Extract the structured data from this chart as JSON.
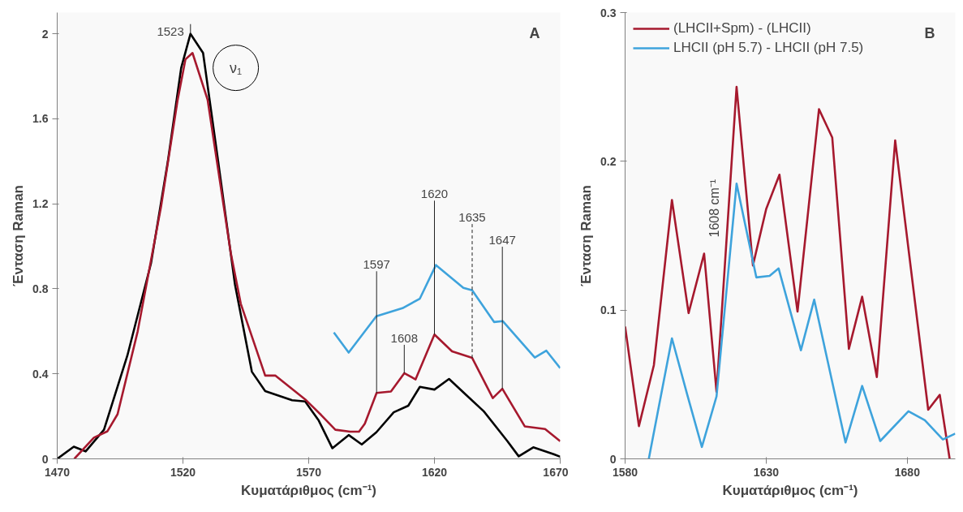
{
  "chart_data": [
    {
      "type": "line",
      "title": "A",
      "xlabel": "Κυματάριθμος (cm⁻¹)",
      "ylabel": "Ένταση Raman",
      "xlim": [
        1470,
        1670
      ],
      "xticks": [
        1470,
        1520,
        1570,
        1620,
        1670
      ],
      "ylim": [
        0,
        2.1
      ],
      "yticks": [
        0,
        0.4,
        0.8,
        1.2,
        1.6,
        2
      ],
      "grid": false,
      "legend": false,
      "line_style": "solid",
      "marker": "none",
      "series": [
        {
          "color": "#000000",
          "x": [
            1470,
            1476.6,
            1481.3,
            1488.6,
            1497.9,
            1507.3,
            1514,
            1519.3,
            1523,
            1528,
            1534,
            1540.7,
            1547.4,
            1552.7,
            1563.4,
            1568.6,
            1574,
            1579.4,
            1585.9,
            1591.1,
            1596.9,
            1603.8,
            1609.6,
            1614.2,
            1620,
            1625.8,
            1632.7,
            1639.6,
            1648.9,
            1653.5,
            1659.3,
            1667.4,
            1670
          ],
          "values": [
            0,
            0.057,
            0.035,
            0.137,
            0.486,
            0.92,
            1.4,
            1.84,
            2.0,
            1.91,
            1.4,
            0.82,
            0.41,
            0.319,
            0.276,
            0.27,
            0.18,
            0.05,
            0.112,
            0.068,
            0.125,
            0.219,
            0.25,
            0.339,
            0.326,
            0.376,
            0.3,
            0.224,
            0.085,
            0.012,
            0.054,
            0.022,
            0.01
          ]
        },
        {
          "color": "#a6192e",
          "x": [
            1476.8,
            1484.6,
            1490,
            1494,
            1502,
            1511.3,
            1517.9,
            1521,
            1523.8,
            1529.8,
            1539,
            1543,
            1552.7,
            1556.7,
            1568.6,
            1574.9,
            1580.6,
            1586.5,
            1590,
            1592.3,
            1597,
            1602.7,
            1608,
            1612.5,
            1620,
            1627,
            1635,
            1643.2,
            1647,
            1655.9,
            1664,
            1670
          ],
          "values": [
            0,
            0.1,
            0.13,
            0.21,
            0.6,
            1.187,
            1.69,
            1.88,
            1.91,
            1.69,
            0.97,
            0.73,
            0.392,
            0.392,
            0.28,
            0.207,
            0.137,
            0.128,
            0.128,
            0.165,
            0.31,
            0.317,
            0.403,
            0.374,
            0.585,
            0.506,
            0.475,
            0.286,
            0.33,
            0.153,
            0.14,
            0.083
          ]
        },
        {
          "color": "#3ea3dc",
          "x": [
            1580,
            1585.9,
            1596.9,
            1607.3,
            1614.2,
            1620.6,
            1631.5,
            1635,
            1643.7,
            1647.2,
            1659.9,
            1664.5,
            1670
          ],
          "values": [
            0.595,
            0.5,
            0.671,
            0.709,
            0.754,
            0.912,
            0.805,
            0.793,
            0.644,
            0.648,
            0.477,
            0.509,
            0.427
          ]
        }
      ],
      "annotations": [
        {
          "text": "1523",
          "x": 1523,
          "y": 2.0
        },
        {
          "text": "1597",
          "x": 1597,
          "y": 0.31
        },
        {
          "text": "1608",
          "x": 1608,
          "y": 0.403
        },
        {
          "text": "1620",
          "x": 1620,
          "y": 0.585
        },
        {
          "text": "1635",
          "x": 1635,
          "y": 0.475
        },
        {
          "text": "1647",
          "x": 1647,
          "y": 0.33
        },
        "ν₁"
      ]
    },
    {
      "type": "line",
      "title": "B",
      "xlabel": "Κυματάριθμος (cm⁻¹)",
      "ylabel": "Ένταση Raman",
      "xlim": [
        1580,
        1697
      ],
      "xticks": [
        1580,
        1630,
        1680
      ],
      "ylim": [
        0,
        0.3
      ],
      "yticks": [
        0,
        0.1,
        0.2,
        0.3
      ],
      "grid": false,
      "legend": "top left",
      "line_style": "solid",
      "marker": "none",
      "series": [
        {
          "name": "(LHCII+Spm) - (LHCII)",
          "color": "#a6192e",
          "x": [
            1580,
            1584.9,
            1590.2,
            1596.6,
            1602.5,
            1608,
            1612.4,
            1619.5,
            1625.3,
            1630,
            1634.7,
            1641.1,
            1648.7,
            1653.4,
            1659.3,
            1664,
            1669.2,
            1675.7,
            1687.4,
            1691.5,
            1695
          ],
          "values": [
            0.089,
            0.022,
            0.063,
            0.174,
            0.098,
            0.138,
            0.045,
            0.25,
            0.13,
            0.168,
            0.191,
            0.099,
            0.235,
            0.216,
            0.074,
            0.109,
            0.055,
            0.214,
            0.033,
            0.043,
            0
          ]
        },
        {
          "name": "LHCII (pH 5.7) - LHCII (pH 7.5)",
          "color": "#3ea3dc",
          "x": [
            1588.4,
            1596.6,
            1601.9,
            1607.2,
            1612.4,
            1619.5,
            1626.5,
            1631.2,
            1634.4,
            1642.3,
            1647,
            1658.1,
            1664,
            1670.4,
            1680.4,
            1686.2,
            1692.6,
            1697
          ],
          "values": [
            0,
            0.081,
            0.044,
            0.008,
            0.042,
            0.185,
            0.122,
            0.123,
            0.128,
            0.073,
            0.107,
            0.011,
            0.049,
            0.012,
            0.032,
            0.026,
            0.013,
            0.017
          ]
        }
      ],
      "annotations": [
        {
          "text": "1608 cm⁻¹",
          "x": 1608,
          "y": 0.138
        }
      ]
    }
  ]
}
